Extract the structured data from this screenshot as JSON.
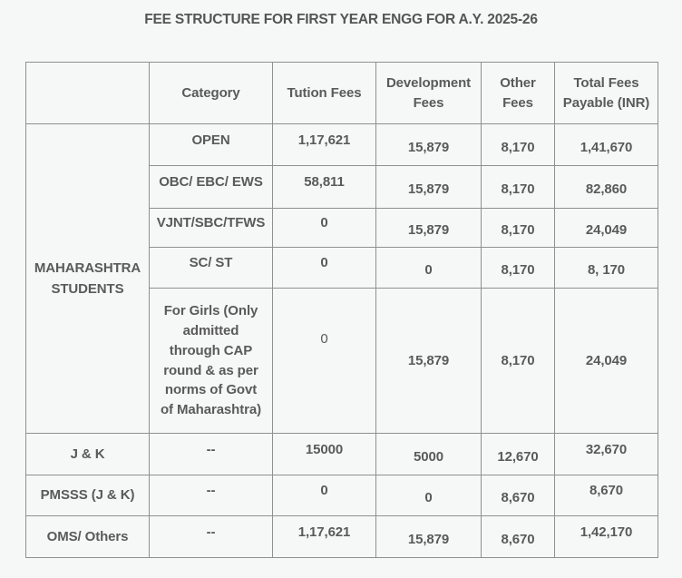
{
  "title": "FEE STRUCTURE FOR FIRST YEAR ENGG FOR A.Y. 2025-26",
  "colors": {
    "background": "#f6f7f7",
    "text": "#5a5a5a",
    "border": "#909090"
  },
  "table": {
    "header": {
      "blank": "",
      "category": "Category",
      "tuition": "Tution Fees",
      "development": "Development Fees",
      "other": "Other Fees",
      "total": "Total Fees Payable (INR)"
    },
    "group_label": "MAHARASHTRA STUDENTS",
    "rows": [
      {
        "label": "",
        "category": "OPEN",
        "tuition": "1,17,621",
        "development": "15,879",
        "other": "8,170",
        "total": "1,41,670"
      },
      {
        "label": "",
        "category": "OBC/ EBC/ EWS",
        "tuition": "58,811",
        "development": "15,879",
        "other": "8,170",
        "total": "82,860"
      },
      {
        "label": "",
        "category": "VJNT/SBC/TFWS",
        "tuition": "0",
        "development": "15,879",
        "other": "8,170",
        "total": "24,049"
      },
      {
        "label": "",
        "category": "SC/ ST",
        "tuition": "0",
        "development": "0",
        "other": "8,170",
        "total": "8, 170"
      },
      {
        "label": "",
        "category": "For Girls (Only admitted through CAP round & as per norms of Govt of Maharashtra)",
        "tuition": "0",
        "development": "15,879",
        "other": "8,170",
        "total": "24,049"
      },
      {
        "label": "J & K",
        "category": "--",
        "tuition": "15000",
        "development": "5000",
        "other": "12,670",
        "total": "32,670"
      },
      {
        "label": "PMSSS (J & K)",
        "category": "--",
        "tuition": "0",
        "development": "0",
        "other": "8,670",
        "total": "8,670"
      },
      {
        "label": "OMS/ Others",
        "category": "--",
        "tuition": "1,17,621",
        "development": "15,879",
        "other": "8,670",
        "total": "1,42,170"
      }
    ]
  }
}
